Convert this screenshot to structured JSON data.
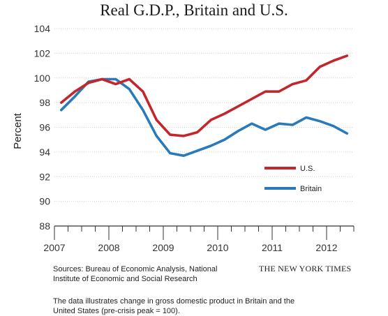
{
  "chart_data": {
    "type": "line",
    "title": "Real G.D.P., Britain and U.S.",
    "ylabel": "Percent",
    "xlabel": "",
    "ylim": [
      88,
      104
    ],
    "yticks": [
      88,
      90,
      92,
      94,
      96,
      98,
      100,
      102,
      104
    ],
    "xlim": [
      2007,
      2012.5
    ],
    "xticks": [
      2007,
      2008,
      2009,
      2010,
      2011,
      2012
    ],
    "grid": "horizontal",
    "legend": "right",
    "series": [
      {
        "name": "U.S.",
        "color": "#c1272d",
        "x": [
          2007.125,
          2007.375,
          2007.625,
          2007.875,
          2008.125,
          2008.375,
          2008.625,
          2008.875,
          2009.125,
          2009.375,
          2009.625,
          2009.875,
          2010.125,
          2010.375,
          2010.625,
          2010.875,
          2011.125,
          2011.375,
          2011.625,
          2011.875,
          2012.125,
          2012.375
        ],
        "values": [
          98.0,
          98.9,
          99.6,
          99.9,
          99.5,
          99.9,
          98.9,
          96.6,
          95.4,
          95.3,
          95.6,
          96.6,
          97.1,
          97.7,
          98.3,
          98.9,
          98.9,
          99.5,
          99.8,
          100.9,
          101.4,
          101.8
        ]
      },
      {
        "name": "Britain",
        "color": "#2a7ab9",
        "x": [
          2007.125,
          2007.375,
          2007.625,
          2007.875,
          2008.125,
          2008.375,
          2008.625,
          2008.875,
          2009.125,
          2009.375,
          2009.625,
          2009.875,
          2010.125,
          2010.375,
          2010.625,
          2010.875,
          2011.125,
          2011.375,
          2011.625,
          2011.875,
          2012.125,
          2012.375
        ],
        "values": [
          97.4,
          98.5,
          99.7,
          99.9,
          99.9,
          99.1,
          97.4,
          95.3,
          93.9,
          93.7,
          94.1,
          94.5,
          95.0,
          95.7,
          96.3,
          95.8,
          96.3,
          96.2,
          96.8,
          96.5,
          96.1,
          95.5
        ]
      }
    ]
  },
  "footer": {
    "sources_line1": "Sources: Bureau of Economic Analysis, National",
    "sources_line2": "Institute of Economic and Social Research",
    "credit": "THE NEW YORK TIMES",
    "note_line1": "The data illustrates change in gross domestic product in Britain and the",
    "note_line2": "United States (pre-crisis peak = 100)."
  }
}
